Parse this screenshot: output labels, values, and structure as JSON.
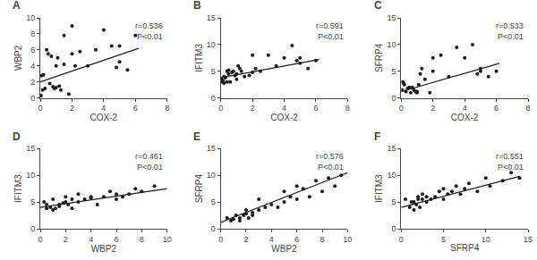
{
  "chart_data": [
    {
      "type": "scatter",
      "title": "A",
      "xlabel": "COX-2",
      "ylabel": "WBP2",
      "annotations": [
        "r=0.536",
        "P<0.01"
      ],
      "xlim": [
        0,
        8
      ],
      "ylim": [
        0,
        10
      ],
      "xticks": [
        0,
        2,
        4,
        6,
        8
      ],
      "yticks": [
        0,
        2,
        4,
        6,
        8,
        10
      ],
      "grid": false,
      "series": [
        {
          "type": "scatter",
          "color": "#1a1a1a",
          "x": [
            0.05,
            0.1,
            0.15,
            0.2,
            0.3,
            0.4,
            0.5,
            0.6,
            0.7,
            0.8,
            0.9,
            1.0,
            1.0,
            1.1,
            1.2,
            1.3,
            1.5,
            1.5,
            1.8,
            2.0,
            2.0,
            2.2,
            2.5,
            3.0,
            3.5,
            4.0,
            4.5,
            4.8,
            5.0,
            5.0,
            5.5,
            6.0
          ],
          "values": [
            0.3,
            2.8,
            1.0,
            2.9,
            1.2,
            6.0,
            5.5,
            1.8,
            5.2,
            1.4,
            1.2,
            1.3,
            4.0,
            5.0,
            1.5,
            1.0,
            4.2,
            7.8,
            0.5,
            5.5,
            9.0,
            4.0,
            5.8,
            4.0,
            6.0,
            8.5,
            6.5,
            3.8,
            6.5,
            4.5,
            3.5,
            7.8
          ]
        },
        {
          "type": "line",
          "color": "#1a1a1a",
          "x": [
            0,
            6.2
          ],
          "values": [
            2.0,
            6.2
          ]
        }
      ]
    },
    {
      "type": "scatter",
      "title": "B",
      "xlabel": "COX-2",
      "ylabel": "IFITM3",
      "annotations": [
        "r=0.591",
        "P<0.01"
      ],
      "xlim": [
        0,
        8
      ],
      "ylim": [
        0,
        15
      ],
      "xticks": [
        0,
        2,
        4,
        6,
        8
      ],
      "yticks": [
        0,
        5,
        10,
        15
      ],
      "grid": false,
      "series": [
        {
          "type": "scatter",
          "color": "#1a1a1a",
          "x": [
            0.05,
            0.1,
            0.15,
            0.2,
            0.2,
            0.3,
            0.4,
            0.4,
            0.5,
            0.5,
            0.6,
            0.7,
            0.8,
            0.9,
            1.0,
            1.0,
            1.1,
            1.2,
            1.3,
            1.5,
            1.8,
            2.0,
            2.0,
            2.2,
            2.5,
            3.0,
            3.5,
            4.0,
            4.5,
            4.8,
            5.0,
            5.0,
            5.5,
            6.0
          ],
          "values": [
            3.5,
            3.0,
            3.2,
            4.0,
            2.8,
            3.8,
            5.0,
            3.0,
            4.5,
            5.2,
            3.0,
            4.8,
            5.0,
            4.2,
            4.5,
            3.5,
            6.0,
            5.5,
            5.0,
            4.0,
            4.2,
            4.8,
            8.0,
            5.5,
            5.0,
            8.0,
            6.0,
            7.5,
            9.8,
            7.0,
            7.5,
            6.5,
            5.5,
            7.0
          ]
        },
        {
          "type": "line",
          "color": "#1a1a1a",
          "x": [
            0,
            6.2
          ],
          "values": [
            3.8,
            7.2
          ]
        }
      ]
    },
    {
      "type": "scatter",
      "title": "C",
      "xlabel": "COX-2",
      "ylabel": "SFRP4",
      "annotations": [
        "r=0.533",
        "P<0.01"
      ],
      "xlim": [
        0,
        8
      ],
      "ylim": [
        0,
        15
      ],
      "xticks": [
        0,
        2,
        4,
        6,
        8
      ],
      "yticks": [
        0,
        5,
        10,
        15
      ],
      "grid": false,
      "series": [
        {
          "type": "scatter",
          "color": "#1a1a1a",
          "x": [
            0.05,
            0.1,
            0.15,
            0.2,
            0.3,
            0.4,
            0.5,
            0.6,
            0.7,
            0.8,
            0.9,
            1.0,
            1.0,
            1.1,
            1.2,
            1.3,
            1.5,
            1.8,
            2.0,
            2.0,
            2.5,
            3.0,
            3.5,
            4.0,
            4.5,
            4.8,
            5.0,
            5.0,
            5.5,
            6.0
          ],
          "values": [
            1.5,
            3.0,
            2.8,
            2.5,
            1.2,
            1.8,
            2.0,
            1.0,
            2.0,
            1.5,
            1.2,
            1.2,
            1.0,
            2.5,
            4.5,
            5.5,
            3.5,
            1.0,
            5.0,
            7.5,
            8.0,
            4.0,
            9.5,
            7.5,
            10.0,
            4.5,
            5.0,
            5.5,
            4.0,
            5.0
          ]
        },
        {
          "type": "line",
          "color": "#1a1a1a",
          "x": [
            0,
            6.2
          ],
          "values": [
            1.2,
            6.5
          ]
        }
      ]
    },
    {
      "type": "scatter",
      "title": "D",
      "xlabel": "WBP2",
      "ylabel": "IFITM3",
      "annotations": [
        "r=0.461",
        "P<0.01"
      ],
      "xlim": [
        0,
        10
      ],
      "ylim": [
        0,
        15
      ],
      "xticks": [
        0,
        2,
        4,
        6,
        8,
        10
      ],
      "yticks": [
        0,
        5,
        10,
        15
      ],
      "grid": false,
      "series": [
        {
          "type": "scatter",
          "color": "#1a1a1a",
          "x": [
            0.3,
            0.5,
            0.5,
            0.8,
            1.0,
            1.0,
            1.2,
            1.5,
            1.5,
            1.8,
            2.0,
            2.0,
            2.2,
            2.5,
            2.5,
            3.0,
            3.0,
            3.5,
            4.0,
            4.0,
            4.5,
            5.0,
            5.5,
            6.0,
            6.0,
            6.5,
            7.0,
            7.5,
            8.0,
            9.0
          ],
          "values": [
            5.0,
            4.5,
            3.8,
            4.0,
            3.5,
            5.5,
            3.8,
            4.5,
            4.2,
            4.8,
            5.0,
            6.0,
            4.5,
            3.8,
            5.5,
            5.0,
            6.5,
            5.5,
            5.8,
            6.0,
            4.5,
            6.0,
            7.0,
            5.5,
            6.5,
            6.0,
            6.5,
            7.5,
            7.0,
            8.0
          ]
        },
        {
          "type": "line",
          "color": "#1a1a1a",
          "x": [
            0,
            10
          ],
          "values": [
            4.0,
            7.5
          ]
        }
      ]
    },
    {
      "type": "scatter",
      "title": "E",
      "xlabel": "WBP2",
      "ylabel": "SFRP4",
      "annotations": [
        "r=0.576",
        "P<0.01"
      ],
      "xlim": [
        0,
        10
      ],
      "ylim": [
        0,
        15
      ],
      "xticks": [
        0,
        2,
        4,
        6,
        8,
        10
      ],
      "yticks": [
        0,
        5,
        10,
        15
      ],
      "grid": false,
      "series": [
        {
          "type": "scatter",
          "color": "#1a1a1a",
          "x": [
            0.5,
            0.8,
            1.0,
            1.2,
            1.5,
            1.5,
            1.8,
            2.0,
            2.0,
            2.2,
            2.5,
            2.5,
            3.0,
            3.0,
            3.5,
            4.0,
            4.5,
            5.0,
            5.0,
            5.5,
            6.0,
            6.0,
            6.5,
            7.0,
            7.5,
            8.0,
            8.5,
            9.0,
            9.5
          ],
          "values": [
            2.0,
            1.5,
            1.8,
            2.5,
            1.5,
            2.0,
            2.5,
            2.8,
            3.5,
            2.0,
            2.5,
            3.0,
            3.5,
            5.5,
            4.0,
            4.5,
            4.0,
            5.0,
            7.0,
            6.0,
            8.0,
            5.5,
            7.5,
            6.0,
            9.0,
            7.0,
            9.5,
            8.0,
            10.0
          ]
        },
        {
          "type": "line",
          "color": "#1a1a1a",
          "x": [
            0,
            10
          ],
          "values": [
            1.2,
            10.5
          ]
        }
      ]
    },
    {
      "type": "scatter",
      "title": "F",
      "xlabel": "SFRP4",
      "ylabel": "IFITM3",
      "annotations": [
        "r=0.551",
        "P<0.01"
      ],
      "xlim": [
        0,
        15
      ],
      "ylim": [
        0,
        15
      ],
      "xticks": [
        0,
        5,
        10,
        15
      ],
      "yticks": [
        0,
        5,
        10,
        15
      ],
      "grid": false,
      "series": [
        {
          "type": "scatter",
          "color": "#1a1a1a",
          "x": [
            0.5,
            1.0,
            1.2,
            1.5,
            1.5,
            1.8,
            2.0,
            2.0,
            2.2,
            2.5,
            2.5,
            3.0,
            3.0,
            3.5,
            4.0,
            4.5,
            5.0,
            5.0,
            5.5,
            6.0,
            6.5,
            7.0,
            7.5,
            8.0,
            9.0,
            10.0,
            10.5,
            12.0,
            13.0,
            14.0
          ],
          "values": [
            5.5,
            4.0,
            5.0,
            3.5,
            5.0,
            4.5,
            5.5,
            6.0,
            4.0,
            5.5,
            6.5,
            6.0,
            5.0,
            5.5,
            6.0,
            7.0,
            5.5,
            7.5,
            6.5,
            7.0,
            8.0,
            6.5,
            7.5,
            8.5,
            7.0,
            9.5,
            8.0,
            9.0,
            10.5,
            9.5
          ]
        },
        {
          "type": "line",
          "color": "#1a1a1a",
          "x": [
            0,
            14
          ],
          "values": [
            4.0,
            9.8
          ]
        }
      ]
    }
  ]
}
